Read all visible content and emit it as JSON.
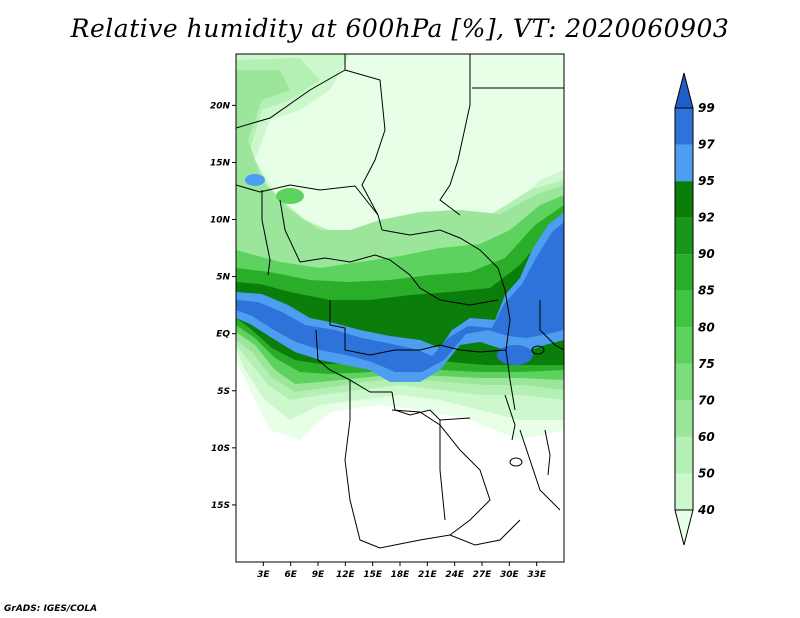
{
  "title": "Relative humidity at 600hPa [%], VT: 2020060903",
  "footer": "GrADS: IGES/COLA",
  "map": {
    "lat_labels": [
      {
        "label": "20N",
        "lat": 20
      },
      {
        "label": "15N",
        "lat": 15
      },
      {
        "label": "10N",
        "lat": 10
      },
      {
        "label": "5N",
        "lat": 5
      },
      {
        "label": "EQ",
        "lat": 0
      },
      {
        "label": "5S",
        "lat": -5
      },
      {
        "label": "10S",
        "lat": -10
      },
      {
        "label": "15S",
        "lat": -15
      }
    ],
    "lon_labels": [
      {
        "label": "3E",
        "lon": 3
      },
      {
        "label": "6E",
        "lon": 6
      },
      {
        "label": "9E",
        "lon": 9
      },
      {
        "label": "12E",
        "lon": 12
      },
      {
        "label": "15E",
        "lon": 15
      },
      {
        "label": "18E",
        "lon": 18
      },
      {
        "label": "21E",
        "lon": 21
      },
      {
        "label": "24E",
        "lon": 24
      },
      {
        "label": "27E",
        "lon": 27
      },
      {
        "label": "30E",
        "lon": 30
      },
      {
        "label": "33E",
        "lon": 33
      }
    ]
  },
  "colorbar": {
    "levels": [
      "40",
      "50",
      "60",
      "70",
      "75",
      "80",
      "85",
      "90",
      "92",
      "95",
      "97",
      "99"
    ],
    "colors": [
      "#e6ffe6",
      "#cdf8cd",
      "#b4f0b4",
      "#9be69b",
      "#7edd7e",
      "#5ed25e",
      "#3fc53f",
      "#2aae2a",
      "#1a961a",
      "#0a7d0a",
      "#4d9ef0",
      "#2d73d9",
      "#1e5fc7"
    ]
  }
}
